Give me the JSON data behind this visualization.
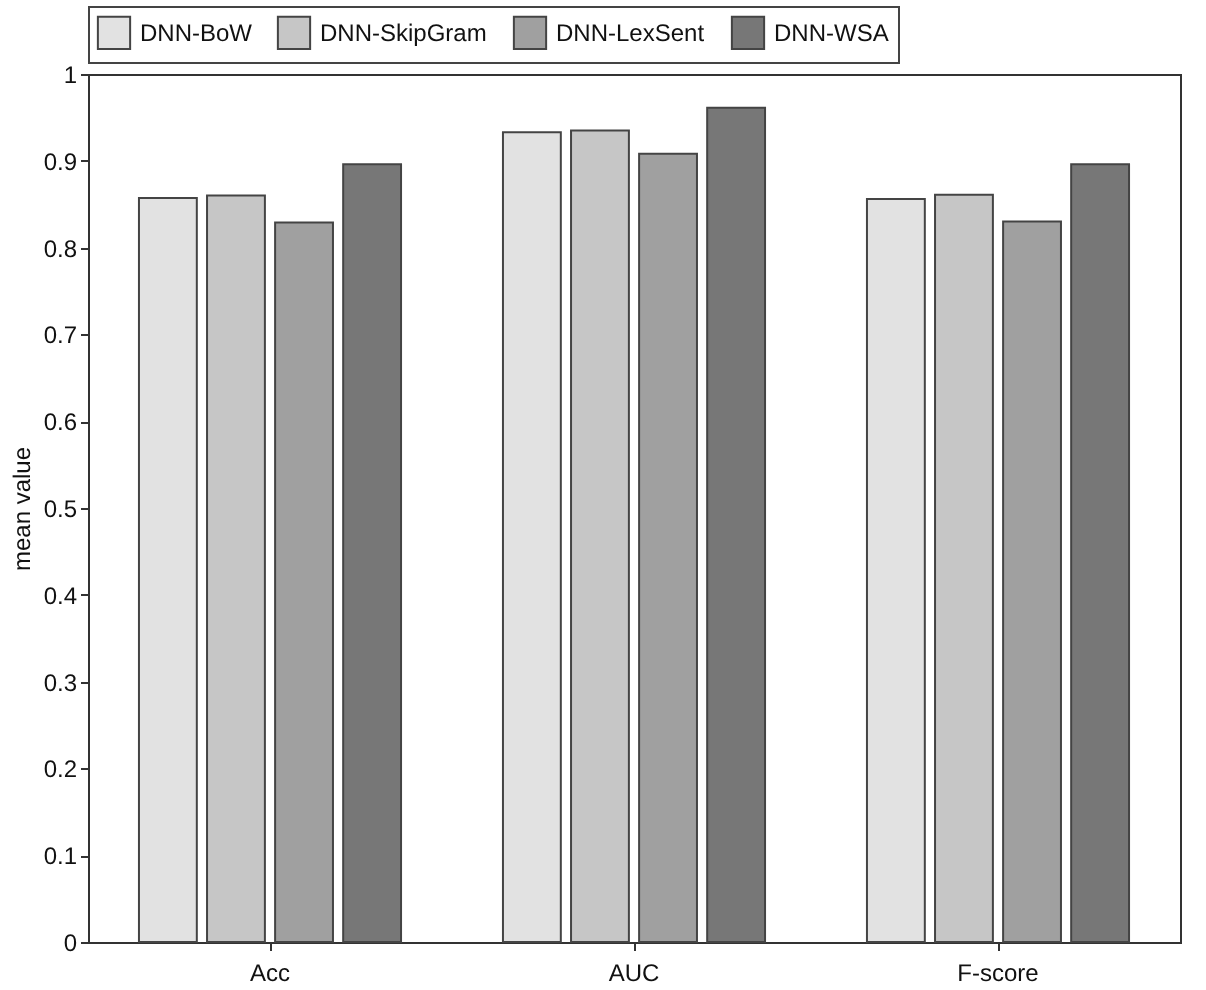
{
  "chart_data": {
    "type": "bar",
    "ylabel": "mean value",
    "categories": [
      "Acc",
      "AUC",
      "F-score"
    ],
    "series": [
      {
        "name": "DNN-BoW",
        "color": "#e2e2e2",
        "values": [
          0.857,
          0.933,
          0.856
        ]
      },
      {
        "name": "DNN-SkipGram",
        "color": "#c6c6c6",
        "values": [
          0.86,
          0.935,
          0.861
        ]
      },
      {
        "name": "DNN-LexSent",
        "color": "#a0a0a0",
        "values": [
          0.829,
          0.908,
          0.83
        ]
      },
      {
        "name": "DNN-WSA",
        "color": "#777777",
        "values": [
          0.896,
          0.961,
          0.896
        ]
      }
    ],
    "ylim": [
      0,
      1
    ],
    "yticks": [
      0,
      0.1,
      0.2,
      0.3,
      0.4,
      0.5,
      0.6,
      0.7,
      0.8,
      0.9,
      1
    ],
    "grid": false,
    "legend": "top"
  }
}
